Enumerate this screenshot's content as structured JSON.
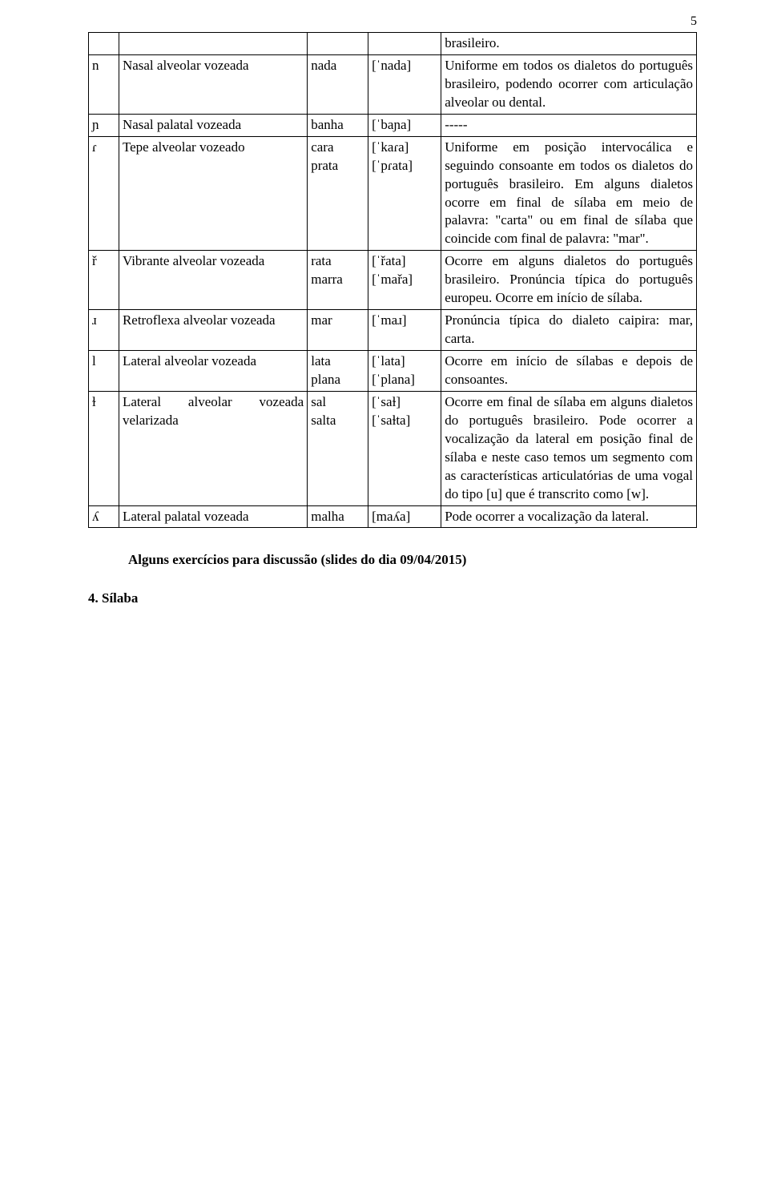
{
  "pageNumber": "5",
  "rows": [
    {
      "sym": "",
      "desc": "",
      "words": "",
      "ipa": "",
      "note": "brasileiro."
    },
    {
      "sym": "n",
      "desc": "Nasal alveolar vozeada",
      "words": "nada",
      "ipa": "[ˈnada]",
      "note": "Uniforme em todos os dialetos do português brasileiro, podendo ocorrer com articulação alveolar ou dental."
    },
    {
      "sym": "ɲ",
      "desc": "Nasal palatal vozeada",
      "words": "banha",
      "ipa": "[ˈbaɲa]",
      "note": "-----"
    },
    {
      "sym": "ɾ",
      "desc": "Tepe alveolar vozeado",
      "words": "cara\nprata",
      "ipa": "[ˈkaɾa]\n[ˈpɾata]",
      "note": "Uniforme em posição intervocálica e seguindo consoante em todos os dialetos do português brasileiro. Em alguns dialetos ocorre em final de sílaba em meio de palavra: \"carta\" ou em final de sílaba que coincide com final de palavra: \"mar\"."
    },
    {
      "sym": "ř",
      "desc": "Vibrante alveolar vozeada",
      "words": "rata\nmarra",
      "ipa": "[ˈřata]\n[ˈmařa]",
      "note": "Ocorre em alguns dialetos do português brasileiro. Pronúncia típica do português europeu. Ocorre em início de sílaba."
    },
    {
      "sym": "ɹ",
      "desc": "Retroflexa alveolar vozeada",
      "words": "mar",
      "ipa": "[ˈmaɹ]",
      "note": "Pronúncia típica do dialeto caipira: mar, carta."
    },
    {
      "sym": "l",
      "desc": "Lateral alveolar vozeada",
      "words": "lata\nplana",
      "ipa": "[ˈlata]\n[ˈplana]",
      "note": "Ocorre em início de sílabas e depois de consoantes."
    },
    {
      "sym": "ɫ",
      "desc": "Lateral alveolar vozeada velarizada",
      "words": "sal\nsalta",
      "ipa": "[ˈsaɫ]\n[ˈsaɫta]",
      "note": "Ocorre em final de sílaba em alguns dialetos do português brasileiro. Pode ocorrer a vocalização da lateral em posição final de sílaba e neste caso temos um segmento com as características articulatórias de uma vogal do tipo [u] que é transcrito como [w]."
    },
    {
      "sym": "ʎ",
      "desc": "Lateral palatal vozeada",
      "words": "malha",
      "ipa": "[maʎa]",
      "note": "Pode ocorrer a vocalização da lateral."
    }
  ],
  "footer": {
    "line1": "Alguns exercícios para discussão (slides do dia 09/04/2015)",
    "line2": "4. Sílaba"
  }
}
